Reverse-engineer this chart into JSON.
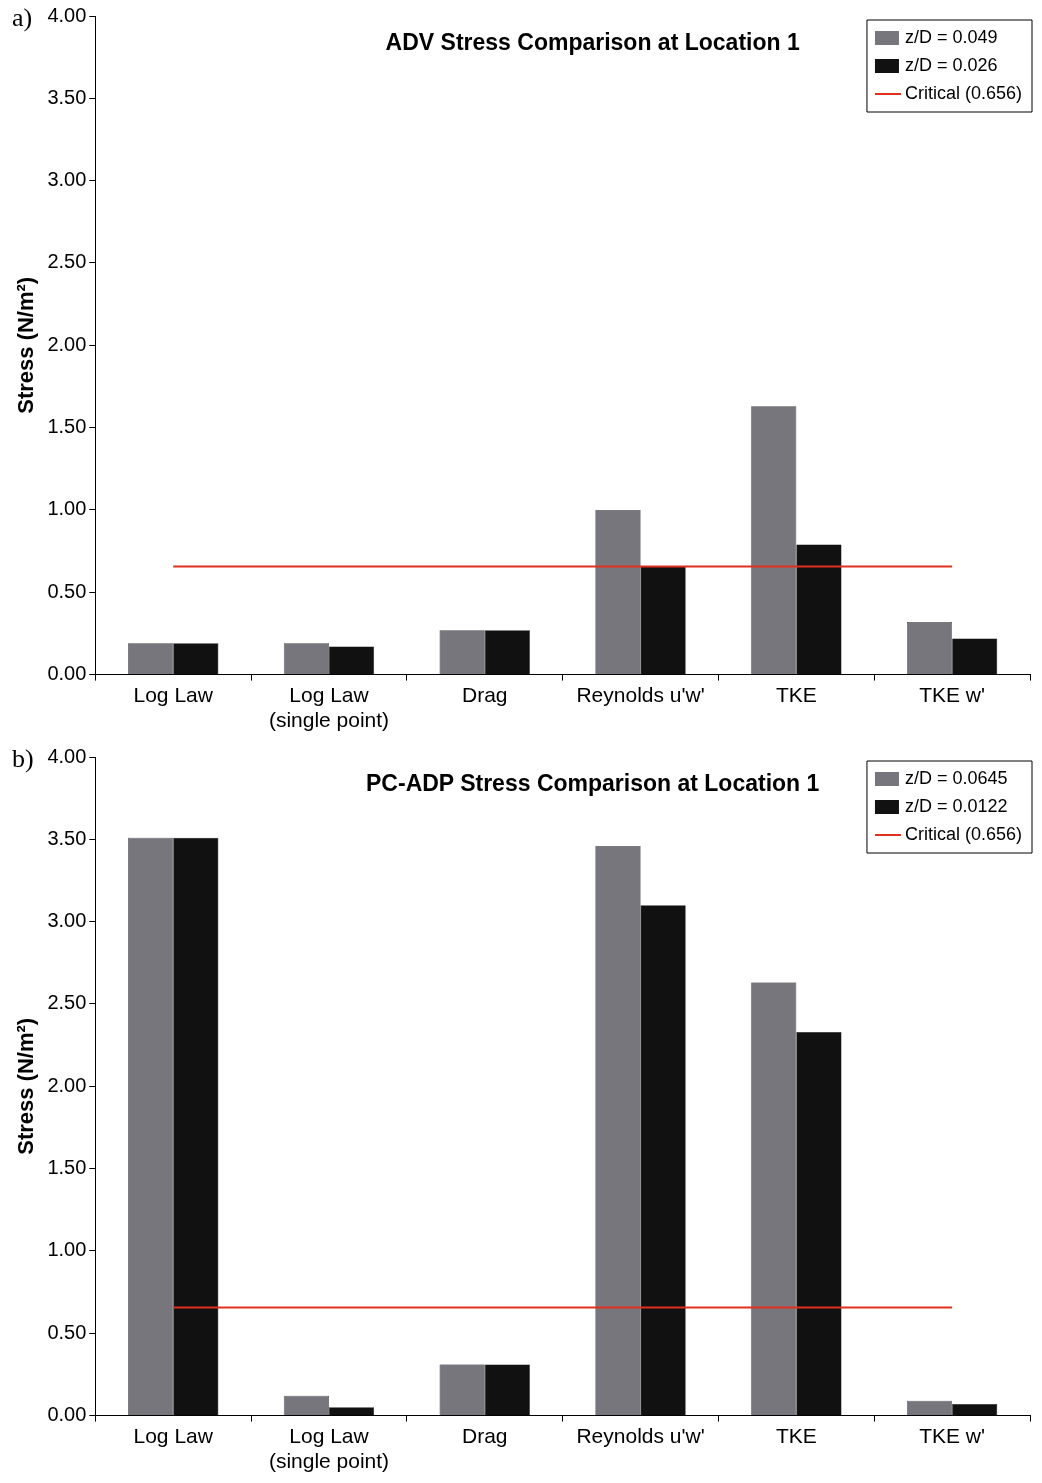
{
  "chart_data": [
    {
      "type": "bar",
      "title": "ADV Stress Comparison at Location 1",
      "ylabel": "Stress (N/m²)",
      "annotations": [
        "a)"
      ],
      "categories": [
        "Log Law",
        "Log Law\n(single point)",
        "Drag",
        "Reynolds u'w'",
        "TKE",
        "TKE w'"
      ],
      "series": [
        {
          "name": "z/D = 0.049",
          "color": "#77767c",
          "values": [
            0.19,
            0.19,
            0.27,
            1.0,
            1.63,
            0.32
          ]
        },
        {
          "name": "z/D = 0.026",
          "color": "#111111",
          "values": [
            0.19,
            0.17,
            0.27,
            0.66,
            0.79,
            0.22
          ]
        },
        {
          "name": "Critical (0.656)",
          "type": "line",
          "color": "#e0301e",
          "values": [
            0.656,
            0.656,
            0.656,
            0.656,
            0.656,
            0.656
          ]
        }
      ],
      "ylim": [
        0,
        4
      ],
      "yticks": [
        {
          "value": 0,
          "label": "0.00"
        },
        {
          "value": 0.5,
          "label": "0.50"
        },
        {
          "value": 1,
          "label": "1.00"
        },
        {
          "value": 1.5,
          "label": "1.50"
        },
        {
          "value": 2,
          "label": "2.00"
        },
        {
          "value": 2.5,
          "label": "2.50"
        },
        {
          "value": 3,
          "label": "3.00"
        },
        {
          "value": 3.5,
          "label": "3.50"
        },
        {
          "value": 4,
          "label": "4.00"
        }
      ],
      "grid": false,
      "legend": "top right",
      "marker": "none"
    },
    {
      "type": "bar",
      "title": "PC-ADP Stress Comparison at Location 1",
      "ylabel": "Stress (N/m²)",
      "annotations": [
        "b)"
      ],
      "categories": [
        "Log Law",
        "Log Law\n(single point)",
        "Drag",
        "Reynolds u'w'",
        "TKE",
        "TKE w'"
      ],
      "series": [
        {
          "name": "z/D = 0.0645",
          "color": "#77767c",
          "values": [
            3.51,
            0.12,
            0.31,
            3.46,
            2.63,
            0.09
          ]
        },
        {
          "name": "z/D = 0.0122",
          "color": "#111111",
          "values": [
            3.51,
            0.05,
            0.31,
            3.1,
            2.33,
            0.07
          ]
        },
        {
          "name": "Critical (0.656)",
          "type": "line",
          "color": "#e0301e",
          "values": [
            0.656,
            0.656,
            0.656,
            0.656,
            0.656,
            0.656
          ]
        }
      ],
      "ylim": [
        0,
        4
      ],
      "yticks": [
        {
          "value": 0,
          "label": "0.00"
        },
        {
          "value": 0.5,
          "label": "0.50"
        },
        {
          "value": 1,
          "label": "1.00"
        },
        {
          "value": 1.5,
          "label": "1.50"
        },
        {
          "value": 2,
          "label": "2.00"
        },
        {
          "value": 2.5,
          "label": "2.50"
        },
        {
          "value": 3,
          "label": "3.00"
        },
        {
          "value": 3.5,
          "label": "3.50"
        },
        {
          "value": 4,
          "label": "4.00"
        }
      ],
      "grid": false,
      "legend": "top right",
      "marker": "none"
    }
  ]
}
